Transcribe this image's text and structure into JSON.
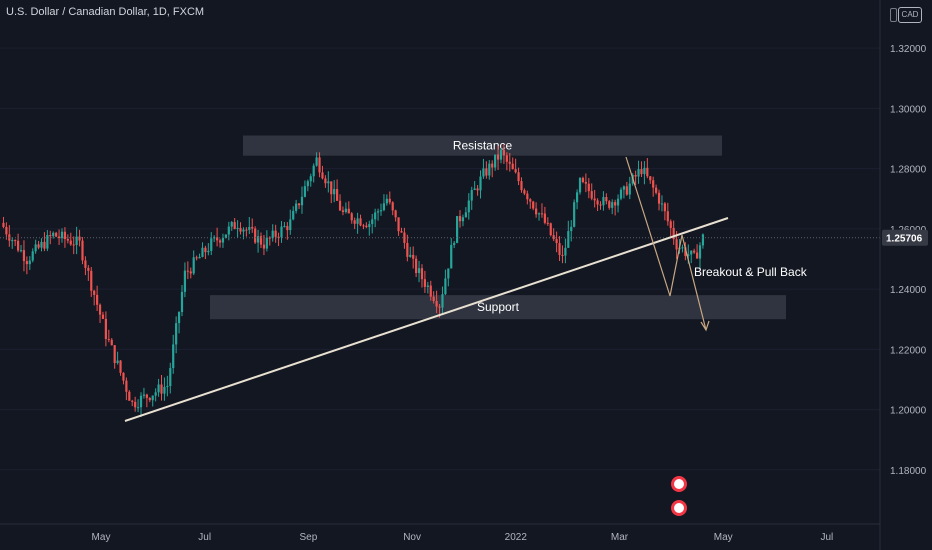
{
  "header": {
    "title": "U.S. Dollar / Canadian Dollar, 1D, FXCM",
    "currency": "CAD"
  },
  "colors": {
    "background": "#131722",
    "up": "#26a69a",
    "down": "#ef5350",
    "zone": "#363a45",
    "trendline": "#e8e0d0",
    "projection": "#c8a882",
    "price_label_bg": "#363a45"
  },
  "chart_data": {
    "type": "candlestick",
    "symbol": "USDCAD",
    "timeframe": "1D",
    "x_ticks": [
      "May",
      "Jul",
      "Sep",
      "Nov",
      "2022",
      "Mar",
      "May",
      "Jul"
    ],
    "y_ticks": [
      "1.32000",
      "1.30000",
      "1.28000",
      "1.26000",
      "1.24000",
      "1.22000",
      "1.20000",
      "1.18000"
    ],
    "ylim": [
      1.162,
      1.336
    ],
    "last_price": "1.25706",
    "trend": [
      {
        "t": 0.0,
        "p": 1.262
      },
      {
        "t": 0.03,
        "p": 1.25
      },
      {
        "t": 0.06,
        "p": 1.258
      },
      {
        "t": 0.09,
        "p": 1.255
      },
      {
        "t": 0.12,
        "p": 1.225
      },
      {
        "t": 0.15,
        "p": 1.202
      },
      {
        "t": 0.19,
        "p": 1.208
      },
      {
        "t": 0.21,
        "p": 1.245
      },
      {
        "t": 0.24,
        "p": 1.255
      },
      {
        "t": 0.27,
        "p": 1.262
      },
      {
        "t": 0.3,
        "p": 1.255
      },
      {
        "t": 0.33,
        "p": 1.262
      },
      {
        "t": 0.36,
        "p": 1.283
      },
      {
        "t": 0.39,
        "p": 1.265
      },
      {
        "t": 0.42,
        "p": 1.262
      },
      {
        "t": 0.44,
        "p": 1.27
      },
      {
        "t": 0.47,
        "p": 1.248
      },
      {
        "t": 0.5,
        "p": 1.235
      },
      {
        "t": 0.52,
        "p": 1.262
      },
      {
        "t": 0.55,
        "p": 1.278
      },
      {
        "t": 0.57,
        "p": 1.285
      },
      {
        "t": 0.59,
        "p": 1.276
      },
      {
        "t": 0.62,
        "p": 1.262
      },
      {
        "t": 0.64,
        "p": 1.25
      },
      {
        "t": 0.66,
        "p": 1.275
      },
      {
        "t": 0.69,
        "p": 1.268
      },
      {
        "t": 0.71,
        "p": 1.272
      },
      {
        "t": 0.73,
        "p": 1.28
      },
      {
        "t": 0.75,
        "p": 1.27
      },
      {
        "t": 0.77,
        "p": 1.255
      },
      {
        "t": 0.79,
        "p": 1.25
      },
      {
        "t": 0.8,
        "p": 1.257
      }
    ],
    "zones": [
      {
        "name": "Resistance",
        "label": "Resistance",
        "p_top": 1.291,
        "p_bottom": 1.2843
      },
      {
        "name": "Support",
        "label": "Support",
        "p_top": 1.238,
        "p_bottom": 1.23
      }
    ],
    "annotations": [
      {
        "text": "Breakout & Pull Back"
      }
    ]
  }
}
